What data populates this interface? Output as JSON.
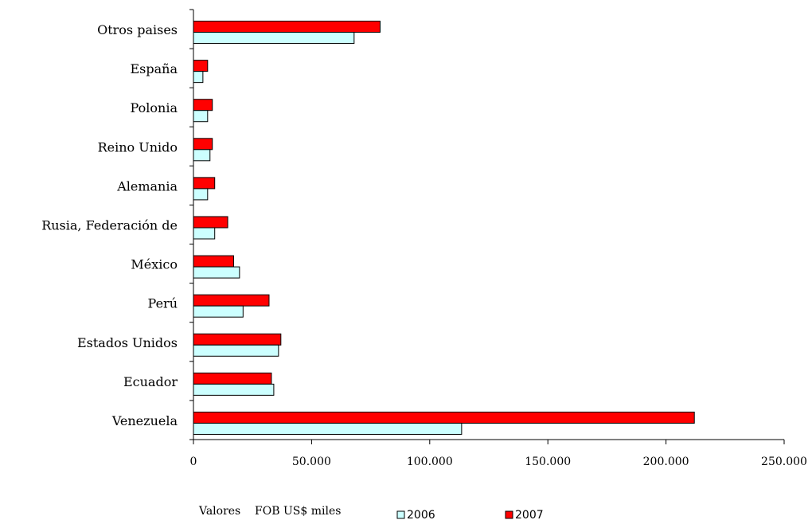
{
  "chart_data": {
    "type": "hbar",
    "categories": [
      "Venezuela",
      "Ecuador",
      "Estados Unidos",
      "Perú",
      "México",
      "Rusia, Federación de",
      "Alemania",
      "Reino Unido",
      "Polonia",
      "España",
      "Otros paises"
    ],
    "series": [
      {
        "name": "2006",
        "color": "#ccffff",
        "values": [
          113500,
          34000,
          36000,
          21000,
          19500,
          9000,
          6000,
          7000,
          6000,
          4000,
          68000
        ]
      },
      {
        "name": "2007",
        "color": "#ff0000",
        "values": [
          212000,
          33000,
          37000,
          32000,
          17000,
          14500,
          9000,
          8000,
          8000,
          6000,
          79000
        ]
      }
    ],
    "x_label": "Valores    FOB US$ miles",
    "xlim": [
      0,
      250000
    ],
    "xticks": [
      0,
      {
        "value": 50000,
        "label": "50.000"
      },
      {
        "value": 100000,
        "label": "100.000"
      },
      {
        "value": 150000,
        "label": "150.000"
      },
      {
        "value": 200000,
        "label": "200.000"
      },
      {
        "value": 250000,
        "label": "250.000"
      }
    ],
    "legend": "bottom"
  }
}
